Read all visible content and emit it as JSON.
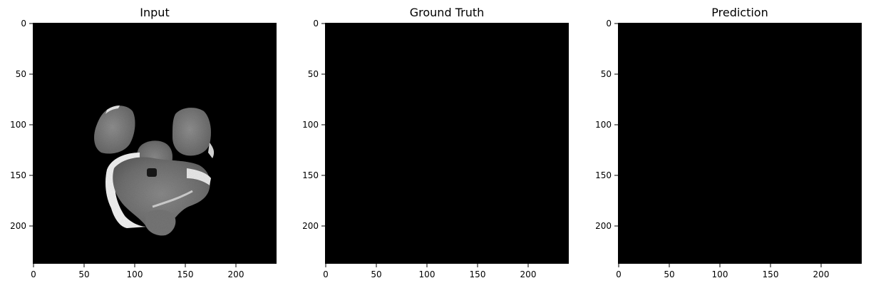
{
  "figure": {
    "panels": [
      {
        "title": "Input",
        "xticks": [
          "0",
          "50",
          "100",
          "150",
          "200"
        ],
        "yticks": [
          "0",
          "50",
          "100",
          "150",
          "200"
        ],
        "image": "brain-mri-axial-slice"
      },
      {
        "title": "Ground Truth",
        "xticks": [
          "0",
          "50",
          "100",
          "150",
          "200"
        ],
        "yticks": [
          "0",
          "50",
          "100",
          "150",
          "200"
        ],
        "image": "empty-black-mask"
      },
      {
        "title": "Prediction",
        "xticks": [
          "0",
          "50",
          "100",
          "150",
          "200"
        ],
        "yticks": [
          "0",
          "50",
          "100",
          "150",
          "200"
        ],
        "image": "empty-black-mask"
      }
    ],
    "colors": {
      "image_background": "#000000",
      "tissue_gray": "#7a7a7a",
      "tissue_highlight": "#f2f2f2"
    }
  }
}
